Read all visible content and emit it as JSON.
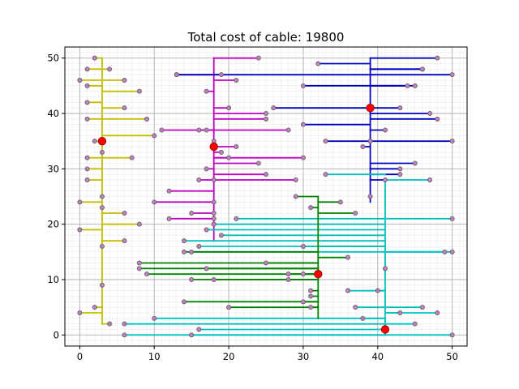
{
  "chart_data": {
    "type": "scatter",
    "title": "Total cost of cable: 19800",
    "xlabel": "",
    "ylabel": "",
    "xlim": [
      -2,
      52
    ],
    "ylim": [
      -2,
      52
    ],
    "xticks": [
      0,
      10,
      20,
      30,
      40,
      50
    ],
    "yticks": [
      0,
      10,
      20,
      30,
      40,
      50
    ],
    "grid": {
      "major": true,
      "minor": true,
      "minor_step": 1
    },
    "legend": "none",
    "series": [
      {
        "color": "#bfbf00",
        "hub": [
          3,
          35
        ],
        "trunk": [
          [
            3,
            2
          ],
          [
            3,
            50
          ]
        ],
        "points": [
          [
            2,
            50
          ],
          [
            1,
            48
          ],
          [
            4,
            48
          ],
          [
            0,
            46
          ],
          [
            1,
            45
          ],
          [
            6,
            46
          ],
          [
            8,
            44
          ],
          [
            1,
            42
          ],
          [
            6,
            41
          ],
          [
            9,
            39
          ],
          [
            1,
            39
          ],
          [
            10,
            36
          ],
          [
            2,
            35
          ],
          [
            3,
            33
          ],
          [
            1,
            32
          ],
          [
            7,
            32
          ],
          [
            1,
            30
          ],
          [
            1,
            28
          ],
          [
            0,
            24
          ],
          [
            3,
            25
          ],
          [
            3,
            23
          ],
          [
            6,
            22
          ],
          [
            8,
            20
          ],
          [
            0,
            19
          ],
          [
            3,
            16
          ],
          [
            6,
            17
          ],
          [
            3,
            9
          ],
          [
            2,
            5
          ],
          [
            0,
            4
          ],
          [
            4,
            2
          ]
        ]
      },
      {
        "color": "#bf00bf",
        "hub": [
          18,
          34
        ],
        "trunk": [
          [
            18,
            17
          ],
          [
            18,
            50
          ]
        ],
        "points": [
          [
            24,
            50
          ],
          [
            13,
            47
          ],
          [
            19,
            47
          ],
          [
            21,
            46
          ],
          [
            17,
            44
          ],
          [
            20,
            41
          ],
          [
            25,
            40
          ],
          [
            25,
            39
          ],
          [
            28,
            37
          ],
          [
            11,
            37
          ],
          [
            16,
            37
          ],
          [
            17,
            37
          ],
          [
            18,
            35
          ],
          [
            21,
            34
          ],
          [
            19,
            33
          ],
          [
            20,
            32
          ],
          [
            30,
            32
          ],
          [
            24,
            31
          ],
          [
            17,
            30
          ],
          [
            25,
            29
          ],
          [
            16,
            28
          ],
          [
            18,
            28
          ],
          [
            29,
            28
          ],
          [
            12,
            26
          ],
          [
            10,
            24
          ],
          [
            18,
            24
          ],
          [
            15,
            22
          ],
          [
            18,
            22
          ],
          [
            12,
            21
          ],
          [
            18,
            21
          ]
        ]
      },
      {
        "color": "#0000bf",
        "hub": [
          39,
          41
        ],
        "trunk": [
          [
            39,
            24
          ],
          [
            39,
            50
          ]
        ],
        "points": [
          [
            48,
            50
          ],
          [
            32,
            49
          ],
          [
            46,
            48
          ],
          [
            13,
            47
          ],
          [
            46,
            48
          ],
          [
            50,
            47
          ],
          [
            30,
            45
          ],
          [
            45,
            45
          ],
          [
            44,
            45
          ],
          [
            26,
            41
          ],
          [
            43,
            41
          ],
          [
            47,
            40
          ],
          [
            48,
            39
          ],
          [
            30,
            38
          ],
          [
            41,
            37
          ],
          [
            33,
            35
          ],
          [
            39,
            35
          ],
          [
            50,
            35
          ],
          [
            38,
            34
          ],
          [
            45,
            31
          ],
          [
            43,
            30
          ],
          [
            43,
            29
          ],
          [
            39,
            25
          ],
          [
            41,
            28
          ]
        ]
      },
      {
        "color": "#00bfbf",
        "hub": [
          41,
          1
        ],
        "trunk": [
          [
            41,
            0
          ],
          [
            41,
            28
          ]
        ],
        "points": [
          [
            33,
            29
          ],
          [
            47,
            28
          ],
          [
            50,
            21
          ],
          [
            18,
            20
          ],
          [
            21,
            21
          ],
          [
            17,
            19
          ],
          [
            19,
            18
          ],
          [
            14,
            17
          ],
          [
            15,
            15
          ],
          [
            16,
            16
          ],
          [
            30,
            16
          ],
          [
            49,
            15
          ],
          [
            50,
            15
          ],
          [
            41,
            12
          ],
          [
            36,
            8
          ],
          [
            40,
            8
          ],
          [
            37,
            5
          ],
          [
            43,
            4
          ],
          [
            46,
            5
          ],
          [
            48,
            4
          ],
          [
            10,
            3
          ],
          [
            38,
            3
          ],
          [
            6,
            2
          ],
          [
            45,
            2
          ],
          [
            16,
            1
          ],
          [
            15,
            0
          ],
          [
            6,
            0
          ],
          [
            50,
            0
          ]
        ]
      },
      {
        "color": "#008000",
        "hub": [
          32,
          11
        ],
        "trunk": [
          [
            32,
            3
          ],
          [
            32,
            25
          ]
        ],
        "points": [
          [
            29,
            25
          ],
          [
            35,
            24
          ],
          [
            31,
            23
          ],
          [
            37,
            22
          ],
          [
            14,
            15
          ],
          [
            36,
            14
          ],
          [
            8,
            13
          ],
          [
            25,
            13
          ],
          [
            8,
            12
          ],
          [
            17,
            12
          ],
          [
            9,
            11
          ],
          [
            28,
            11
          ],
          [
            30,
            11
          ],
          [
            15,
            10
          ],
          [
            18,
            10
          ],
          [
            28,
            10
          ],
          [
            31,
            8
          ],
          [
            31,
            7
          ],
          [
            30,
            6
          ],
          [
            14,
            6
          ],
          [
            20,
            5
          ],
          [
            31,
            5
          ]
        ]
      }
    ],
    "hub_color": "#ff0000"
  }
}
